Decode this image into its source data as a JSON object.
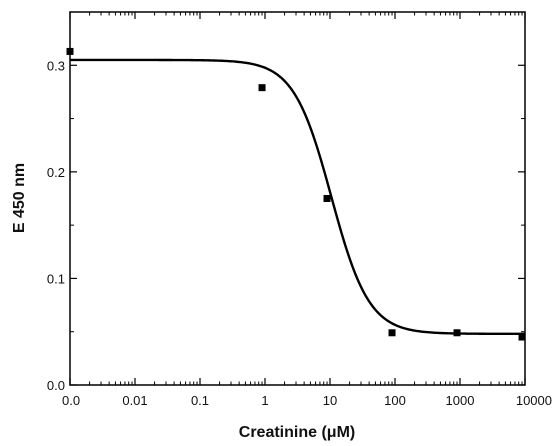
{
  "chart_data": {
    "type": "scatter",
    "title": "",
    "xlabel": "Creatinine (μM)",
    "ylabel": "E 450 nm",
    "x_scale": "log",
    "xlim": [
      0.001,
      10000
    ],
    "ylim": [
      0.0,
      0.35
    ],
    "x_ticks": [
      {
        "value": 0.001,
        "label": "0.0"
      },
      {
        "value": 0.01,
        "label": "0.01"
      },
      {
        "value": 0.1,
        "label": "0.1"
      },
      {
        "value": 1,
        "label": "1"
      },
      {
        "value": 10,
        "label": "10"
      },
      {
        "value": 100,
        "label": "100"
      },
      {
        "value": 1000,
        "label": "1000"
      },
      {
        "value": 10000,
        "label": "10000"
      }
    ],
    "y_ticks": [
      {
        "value": 0.0,
        "label": "0.0"
      },
      {
        "value": 0.1,
        "label": "0.1"
      },
      {
        "value": 0.2,
        "label": "0.2"
      },
      {
        "value": 0.3,
        "label": "0.3"
      }
    ],
    "grid": false,
    "legend": "none",
    "series": [
      {
        "kind": "points",
        "marker": "square",
        "color": "#000000",
        "x": [
          0.001,
          0.9,
          9,
          90,
          900,
          9000
        ],
        "y": [
          0.313,
          0.279,
          0.175,
          0.049,
          0.049,
          0.045
        ]
      },
      {
        "kind": "fit-curve",
        "color": "#000000",
        "model": "sigmoid",
        "top": 0.305,
        "bottom": 0.048,
        "ec50": 10.5,
        "hill": 1.5
      }
    ]
  }
}
